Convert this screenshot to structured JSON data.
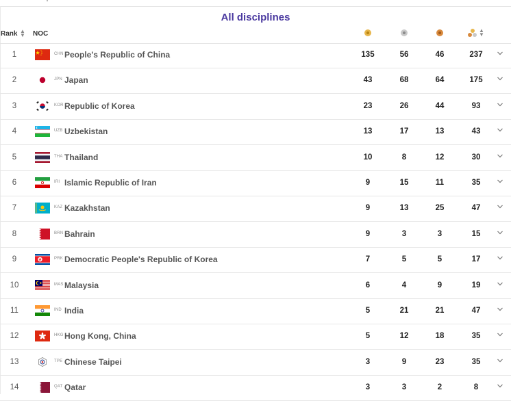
{
  "title": "All disciplines",
  "header": {
    "rank_label": "Rank",
    "noc_label": "NOC",
    "medal_colors": {
      "gold": "#e7b64b",
      "silver": "#c9c9c9",
      "bronze": "#d88a3e"
    }
  },
  "rows": [
    {
      "rank": "1",
      "code": "CHN",
      "name": "People's Republic of China",
      "gold": "135",
      "silver": "56",
      "bronze": "46",
      "total": "237"
    },
    {
      "rank": "2",
      "code": "JPN",
      "name": "Japan",
      "gold": "43",
      "silver": "68",
      "bronze": "64",
      "total": "175"
    },
    {
      "rank": "3",
      "code": "KOR",
      "name": "Republic of Korea",
      "gold": "23",
      "silver": "26",
      "bronze": "44",
      "total": "93"
    },
    {
      "rank": "4",
      "code": "UZB",
      "name": "Uzbekistan",
      "gold": "13",
      "silver": "17",
      "bronze": "13",
      "total": "43"
    },
    {
      "rank": "5",
      "code": "THA",
      "name": "Thailand",
      "gold": "10",
      "silver": "8",
      "bronze": "12",
      "total": "30"
    },
    {
      "rank": "6",
      "code": "IRI",
      "name": "Islamic Republic of Iran",
      "gold": "9",
      "silver": "15",
      "bronze": "11",
      "total": "35"
    },
    {
      "rank": "7",
      "code": "KAZ",
      "name": "Kazakhstan",
      "gold": "9",
      "silver": "13",
      "bronze": "25",
      "total": "47"
    },
    {
      "rank": "8",
      "code": "BRN",
      "name": "Bahrain",
      "gold": "9",
      "silver": "3",
      "bronze": "3",
      "total": "15"
    },
    {
      "rank": "9",
      "code": "PRK",
      "name": "Democratic People's Republic of Korea",
      "gold": "7",
      "silver": "5",
      "bronze": "5",
      "total": "17"
    },
    {
      "rank": "10",
      "code": "MAS",
      "name": "Malaysia",
      "gold": "6",
      "silver": "4",
      "bronze": "9",
      "total": "19"
    },
    {
      "rank": "11",
      "code": "IND",
      "name": "India",
      "gold": "5",
      "silver": "21",
      "bronze": "21",
      "total": "47"
    },
    {
      "rank": "12",
      "code": "HKG",
      "name": "Hong Kong, China",
      "gold": "5",
      "silver": "12",
      "bronze": "18",
      "total": "35"
    },
    {
      "rank": "13",
      "code": "TPE",
      "name": "Chinese Taipei",
      "gold": "3",
      "silver": "9",
      "bronze": "23",
      "total": "35"
    },
    {
      "rank": "14",
      "code": "QAT",
      "name": "Qatar",
      "gold": "3",
      "silver": "3",
      "bronze": "2",
      "total": "8"
    }
  ]
}
